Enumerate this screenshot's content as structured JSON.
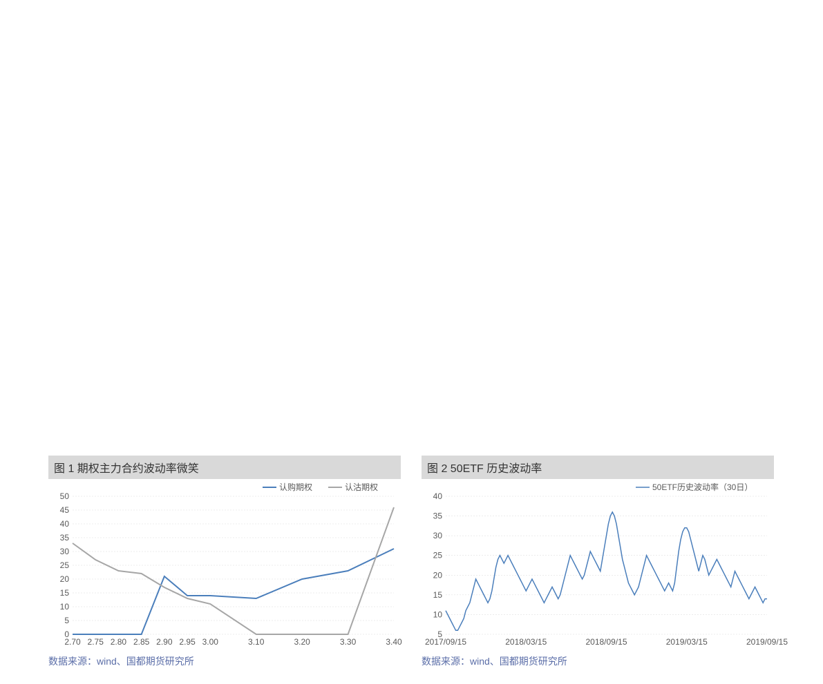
{
  "chart1": {
    "type": "line",
    "title": "图 1 期权主力合约波动率微笑",
    "source": "数据来源：wind、国都期货研究所",
    "x": [
      2.7,
      2.75,
      2.8,
      2.85,
      2.9,
      2.95,
      3.0,
      3.1,
      3.2,
      3.3,
      3.4
    ],
    "xlim": [
      2.7,
      3.4
    ],
    "ylim": [
      0,
      50
    ],
    "ytick_step": 5,
    "series": [
      {
        "name": "认购期权",
        "color": "#4a7ebb",
        "line_width": 2,
        "y": [
          0,
          0,
          0,
          0,
          21,
          14,
          14,
          13,
          20,
          23,
          31
        ]
      },
      {
        "name": "认沽期权",
        "color": "#a6a6a6",
        "line_width": 2,
        "y": [
          33,
          27,
          23,
          22,
          17,
          13,
          11,
          0,
          0,
          0,
          46
        ]
      }
    ],
    "background_color": "#ffffff",
    "axis_color": "#595959",
    "grid_color": "#d9d9d9",
    "axis_fontsize": 12
  },
  "chart2": {
    "type": "line",
    "title": "图 2 50ETF 历史波动率",
    "source": "数据来源：wind、国都期货研究所",
    "xlim_labels": [
      "2017/09/15",
      "2018/03/15",
      "2018/09/15",
      "2019/03/15",
      "2019/09/15"
    ],
    "ylim": [
      5,
      40
    ],
    "ytick_step": 5,
    "series": [
      {
        "name": "50ETF历史波动率（30日）",
        "color": "#4a7ebb",
        "line_width": 1.5,
        "y": [
          11,
          10,
          9,
          8,
          7,
          6,
          6,
          7,
          8,
          9,
          11,
          12,
          13,
          15,
          17,
          19,
          18,
          17,
          16,
          15,
          14,
          13,
          14,
          16,
          19,
          22,
          24,
          25,
          24,
          23,
          24,
          25,
          24,
          23,
          22,
          21,
          20,
          19,
          18,
          17,
          16,
          17,
          18,
          19,
          18,
          17,
          16,
          15,
          14,
          13,
          14,
          15,
          16,
          17,
          16,
          15,
          14,
          15,
          17,
          19,
          21,
          23,
          25,
          24,
          23,
          22,
          21,
          20,
          19,
          20,
          22,
          24,
          26,
          25,
          24,
          23,
          22,
          21,
          24,
          27,
          30,
          33,
          35,
          36,
          35,
          33,
          30,
          27,
          24,
          22,
          20,
          18,
          17,
          16,
          15,
          16,
          17,
          19,
          21,
          23,
          25,
          24,
          23,
          22,
          21,
          20,
          19,
          18,
          17,
          16,
          17,
          18,
          17,
          16,
          18,
          22,
          26,
          29,
          31,
          32,
          32,
          31,
          29,
          27,
          25,
          23,
          21,
          23,
          25,
          24,
          22,
          20,
          21,
          22,
          23,
          24,
          23,
          22,
          21,
          20,
          19,
          18,
          17,
          19,
          21,
          20,
          19,
          18,
          17,
          16,
          15,
          14,
          15,
          16,
          17,
          16,
          15,
          14,
          13,
          14,
          14
        ]
      }
    ],
    "background_color": "#ffffff",
    "axis_color": "#595959",
    "grid_color": "#d9d9d9",
    "axis_fontsize": 12
  }
}
